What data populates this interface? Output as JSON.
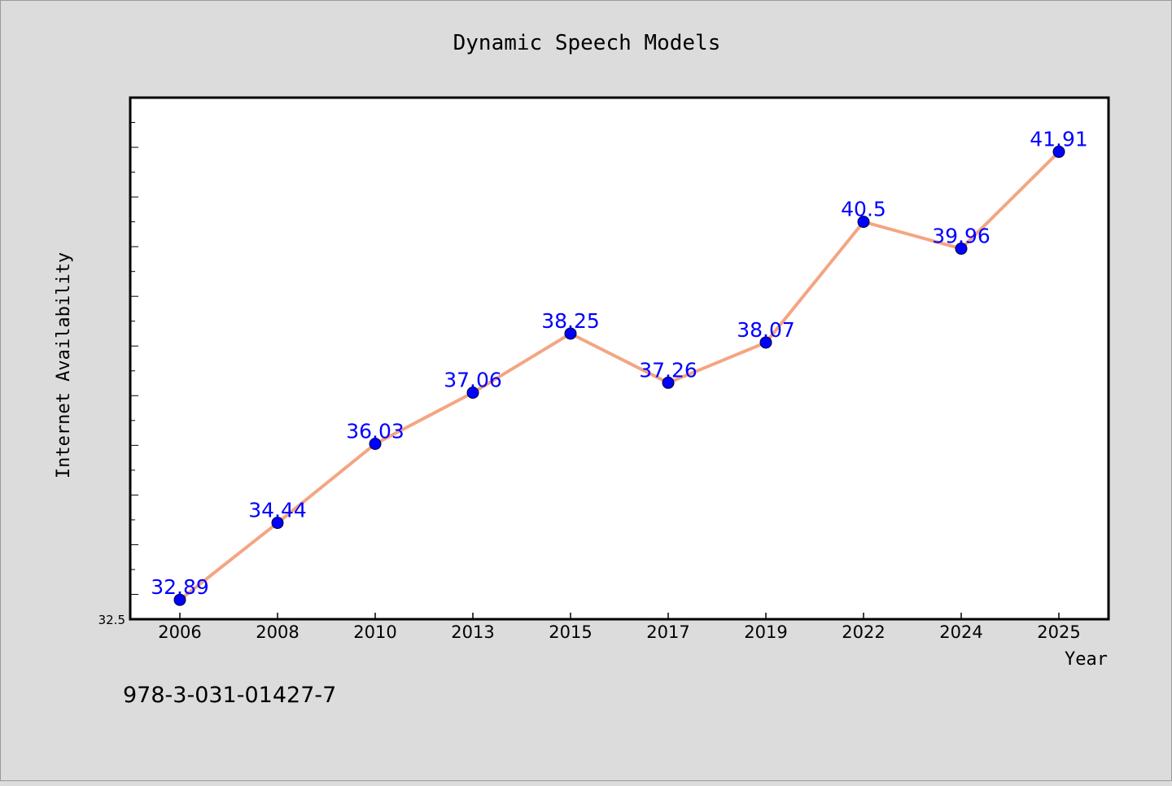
{
  "chart_data": {
    "type": "line",
    "title": "Dynamic Speech Models",
    "xlabel": "Year",
    "ylabel": "Internet Availability",
    "categories": [
      "2006",
      "2008",
      "2010",
      "2013",
      "2015",
      "2017",
      "2019",
      "2022",
      "2024",
      "2025"
    ],
    "series": [
      {
        "values": [
          32.89,
          34.44,
          36.03,
          37.06,
          38.25,
          37.26,
          38.07,
          40.5,
          39.96,
          41.91
        ]
      }
    ],
    "data_labels": [
      "32.89",
      "34.44",
      "36.03",
      "37.06",
      "38.25",
      "37.26",
      "38.07",
      "40.5",
      "39.96",
      "41.91"
    ],
    "ylim": [
      32.5,
      43.0
    ],
    "y_tick_labels": [
      "32.5"
    ],
    "grid": false,
    "legend": "none",
    "colors": {
      "line": "#f4a582",
      "marker": "#0000ff",
      "label": "#0000ff",
      "plot_background": "#ffffff",
      "page_background": "#dcdcdc"
    }
  },
  "footnote": "978-3-031-01427-7"
}
